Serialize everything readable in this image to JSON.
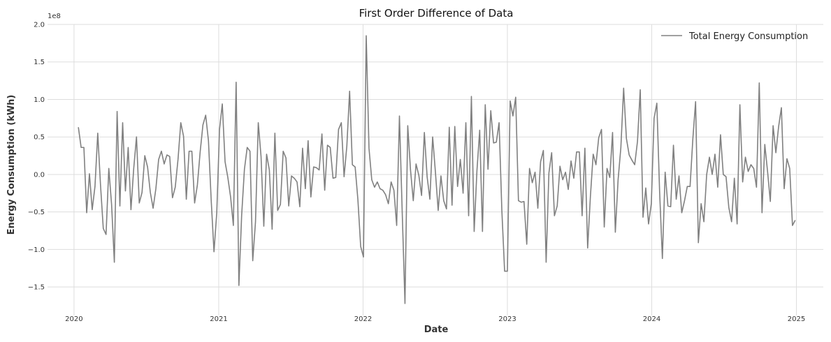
{
  "chart_data": {
    "type": "line",
    "title": "First Order Difference of Data",
    "xlabel": "Date",
    "ylabel": "Energy Consumption (kWh)",
    "y_offset_label": "1e8",
    "y_scale": 100000000,
    "xlim": [
      "2019-10-26",
      "2025-03-10"
    ],
    "ylim": [
      -1.88,
      2.0
    ],
    "x_ticks": [
      {
        "date": "2020-01-01",
        "label": "2020"
      },
      {
        "date": "2021-01-01",
        "label": "2021"
      },
      {
        "date": "2022-01-01",
        "label": "2022"
      },
      {
        "date": "2023-01-01",
        "label": "2023"
      },
      {
        "date": "2024-01-01",
        "label": "2024"
      },
      {
        "date": "2025-01-01",
        "label": "2025"
      }
    ],
    "y_ticks": [
      {
        "value": 2.0,
        "label": "2.0"
      },
      {
        "value": 1.5,
        "label": "1.5"
      },
      {
        "value": 1.0,
        "label": "1.0"
      },
      {
        "value": 0.5,
        "label": "0.5"
      },
      {
        "value": 0.0,
        "label": "0.0"
      },
      {
        "value": -0.5,
        "label": "−0.5"
      },
      {
        "value": -1.0,
        "label": "−1.0"
      },
      {
        "value": -1.5,
        "label": "−1.5"
      }
    ],
    "grid": true,
    "legend_position": "top-right",
    "colors": {
      "series": "#808080",
      "grid": "#dddddd"
    },
    "series": [
      {
        "name": "Total Energy Consumption",
        "x_start": "2020-01-12",
        "x_step": "weekly",
        "values": [
          0.63,
          0.36,
          0.36,
          -0.51,
          0.01,
          -0.47,
          -0.16,
          0.55,
          -0.14,
          -0.72,
          -0.8,
          0.08,
          -0.4,
          -1.17,
          0.84,
          -0.42,
          0.69,
          -0.22,
          0.36,
          -0.47,
          0.08,
          0.5,
          -0.38,
          -0.24,
          0.25,
          0.1,
          -0.24,
          -0.45,
          -0.19,
          0.2,
          0.31,
          0.14,
          0.26,
          0.24,
          -0.31,
          -0.17,
          0.2,
          0.69,
          0.51,
          -0.33,
          0.31,
          0.31,
          -0.38,
          -0.14,
          0.3,
          0.66,
          0.79,
          0.45,
          -0.35,
          -1.03,
          -0.51,
          0.6,
          0.94,
          0.17,
          -0.04,
          -0.3,
          -0.68,
          1.23,
          -1.48,
          -0.54,
          0.07,
          0.36,
          0.31,
          -1.15,
          -0.63,
          0.69,
          0.24,
          -0.69,
          0.27,
          0.06,
          -0.73,
          0.55,
          -0.48,
          -0.4,
          0.31,
          0.22,
          -0.42,
          -0.02,
          -0.05,
          -0.1,
          -0.43,
          0.35,
          -0.19,
          0.45,
          -0.3,
          0.1,
          0.09,
          0.06,
          0.54,
          -0.21,
          0.39,
          0.36,
          -0.05,
          -0.04,
          0.6,
          0.69,
          -0.03,
          0.38,
          1.11,
          0.13,
          0.1,
          -0.34,
          -0.96,
          -1.1,
          1.85,
          0.35,
          -0.07,
          -0.17,
          -0.1,
          -0.19,
          -0.21,
          -0.27,
          -0.39,
          -0.1,
          -0.21,
          -0.68,
          0.78,
          -0.5,
          -1.72,
          0.65,
          0.06,
          -0.35,
          0.14,
          -0.01,
          -0.28,
          0.56,
          -0.03,
          -0.33,
          0.5,
          0.03,
          -0.48,
          -0.02,
          -0.35,
          -0.46,
          0.63,
          -0.41,
          0.64,
          -0.16,
          0.2,
          -0.25,
          0.69,
          -0.55,
          1.04,
          -0.76,
          0.05,
          0.59,
          -0.76,
          0.93,
          0.07,
          0.85,
          0.42,
          0.43,
          0.69,
          -0.48,
          -1.29,
          -1.29,
          0.98,
          0.78,
          1.03,
          -0.35,
          -0.37,
          -0.36,
          -0.93,
          0.08,
          -0.11,
          0.03,
          -0.45,
          0.17,
          0.32,
          -1.17,
          0.02,
          0.29,
          -0.55,
          -0.42,
          0.11,
          -0.07,
          0.03,
          -0.2,
          0.18,
          -0.05,
          0.3,
          0.3,
          -0.55,
          0.35,
          -0.98,
          -0.29,
          0.27,
          0.13,
          0.49,
          0.6,
          -0.7,
          0.08,
          -0.04,
          0.56,
          -0.77,
          -0.07,
          0.36,
          1.15,
          0.48,
          0.26,
          0.19,
          0.13,
          0.44,
          1.13,
          -0.57,
          -0.18,
          -0.66,
          -0.39,
          0.75,
          0.95,
          -0.23,
          -1.12,
          0.03,
          -0.42,
          -0.43,
          0.39,
          -0.33,
          -0.02,
          -0.51,
          -0.35,
          -0.16,
          -0.16,
          0.47,
          0.97,
          -0.91,
          -0.39,
          -0.63,
          0.0,
          0.23,
          0.0,
          0.27,
          -0.17,
          0.53,
          0.0,
          -0.03,
          -0.44,
          -0.63,
          -0.05,
          -0.66,
          0.93,
          -0.1,
          0.23,
          0.04,
          0.13,
          0.08,
          -0.17,
          1.22,
          -0.51,
          0.4,
          0.04,
          -0.36,
          0.65,
          0.29,
          0.64,
          0.89,
          -0.19,
          0.21,
          0.08,
          -0.68,
          -0.61
        ]
      }
    ]
  }
}
